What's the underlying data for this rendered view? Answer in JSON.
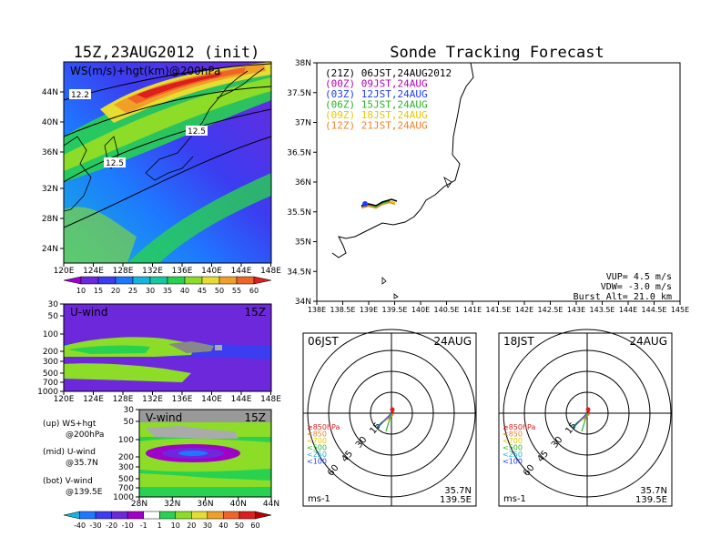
{
  "left_title": "15Z,23AUG2012 (init)",
  "right_title": "Sonde Tracking Forecast",
  "map_panel": {
    "label": "WS(m/s)+hgt(km)@200hPa",
    "contour_labels": [
      "12.2",
      "12.5",
      "12.5"
    ],
    "lat_ticks": [
      "44N",
      "40N",
      "36N",
      "32N",
      "28N",
      "24N"
    ],
    "lon_ticks": [
      "120E",
      "124E",
      "128E",
      "132E",
      "136E",
      "140E",
      "144E",
      "148E"
    ],
    "colorbar": {
      "labels": [
        "10",
        "15",
        "20",
        "25",
        "30",
        "35",
        "40",
        "45",
        "50",
        "55",
        "60"
      ],
      "colors": [
        "#a000c8",
        "#6e28dc",
        "#3c3cf0",
        "#1e78ff",
        "#14b4dc",
        "#14c8a0",
        "#28d250",
        "#8cdc28",
        "#e6dc32",
        "#f0a028",
        "#f06428",
        "#dc1e1e"
      ]
    }
  },
  "u_panel": {
    "label": "U-wind",
    "time": "15Z",
    "p_ticks": [
      "30",
      "50",
      "100",
      "200",
      "300",
      "500",
      "700",
      "1000"
    ],
    "lon_ticks": [
      "120E",
      "124E",
      "128E",
      "132E",
      "136E",
      "140E",
      "144E",
      "148E"
    ]
  },
  "v_panel": {
    "label": "V-wind",
    "time": "15Z",
    "p_ticks": [
      "30",
      "50",
      "100",
      "200",
      "300",
      "500",
      "700",
      "1000"
    ],
    "lat_ticks": [
      "28N",
      "32N",
      "36N",
      "40N",
      "44N"
    ],
    "colorbar": {
      "labels": [
        "-40",
        "-30",
        "-20",
        "-10",
        "-1",
        "1",
        "10",
        "20",
        "30",
        "40",
        "50",
        "60"
      ],
      "colors": [
        "#14b4dc",
        "#1e78ff",
        "#3c3cf0",
        "#6e28dc",
        "#a000c8",
        "#ffffff",
        "#28d250",
        "#8cdc28",
        "#e6dc32",
        "#f0a028",
        "#f06428",
        "#dc1e1e",
        "#b40000"
      ]
    }
  },
  "legend_notes": [
    {
      "line1": "(up) WS+hgt",
      "line2": "@200hPa"
    },
    {
      "line1": "(mid) U-wind",
      "line2": "@35.7N"
    },
    {
      "line1": "(bot) V-wind",
      "line2": "@139.5E"
    }
  ],
  "track_panel": {
    "lat_ticks": [
      "38N",
      "37.5N",
      "37N",
      "36.5N",
      "36N",
      "35.5N",
      "35N",
      "34.5N",
      "34N"
    ],
    "lon_ticks": [
      "138E",
      "138.5E",
      "139E",
      "139.5E",
      "140E",
      "140.5E",
      "141E",
      "141.5E",
      "142E",
      "142.5E",
      "143E",
      "143.5E",
      "144E",
      "144.5E",
      "145E"
    ],
    "legend": [
      {
        "text": "(21Z) 06JST,24AUG2012",
        "color": "#000000"
      },
      {
        "text": "(00Z) 09JST,24AUG",
        "color": "#b400b4"
      },
      {
        "text": "(03Z) 12JST,24AUG",
        "color": "#1e3cff"
      },
      {
        "text": "(06Z) 15JST,24AUG",
        "color": "#28b428"
      },
      {
        "text": "(09Z) 18JST,24AUG",
        "color": "#e6c800"
      },
      {
        "text": "(12Z) 21JST,24AUG",
        "color": "#f08228"
      }
    ],
    "vup": "VUP= 4.5 m/s",
    "vdw": "VDW= -3.0 m/s",
    "burst": "Burst Alt= 21.0 km"
  },
  "hodographs": [
    {
      "time": "06JST",
      "date": "24AUG",
      "rings": [
        "15",
        "30",
        "45",
        "60"
      ],
      "pressure_legend": [
        {
          "text": "≥850hPa",
          "color": "#dc1e1e"
        },
        {
          "text": "<850",
          "color": "#f08228"
        },
        {
          "text": "<700",
          "color": "#e6c800"
        },
        {
          "text": "<500",
          "color": "#28b428"
        },
        {
          "text": "<250",
          "color": "#14b4dc"
        },
        {
          "text": "<100",
          "color": "#1e3cff"
        }
      ],
      "unit": "ms-1",
      "lat": "35.7N",
      "lon": "139.5E"
    },
    {
      "time": "18JST",
      "date": "24AUG",
      "rings": [
        "15",
        "30",
        "45",
        "60"
      ],
      "pressure_legend": [
        {
          "text": "≥850hPa",
          "color": "#dc1e1e"
        },
        {
          "text": "<850",
          "color": "#f08228"
        },
        {
          "text": "<700",
          "color": "#e6c800"
        },
        {
          "text": "<500",
          "color": "#28b428"
        },
        {
          "text": "<250",
          "color": "#14b4dc"
        },
        {
          "text": "<100",
          "color": "#1e3cff"
        }
      ],
      "unit": "ms-1",
      "lat": "35.7N",
      "lon": "139.5E"
    }
  ]
}
